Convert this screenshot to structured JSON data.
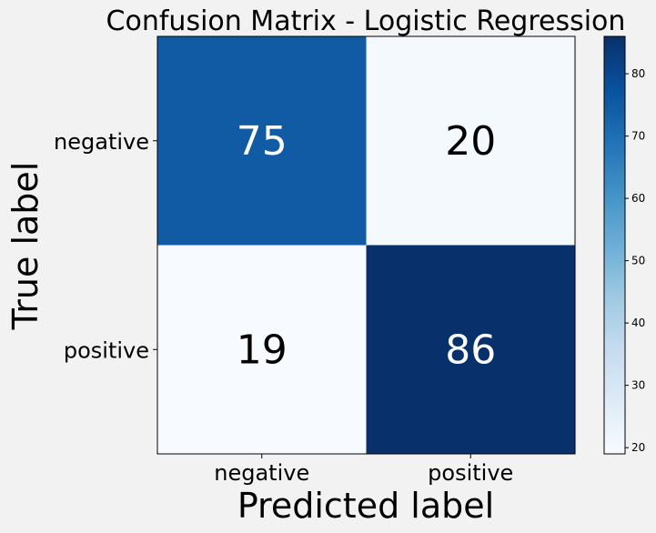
{
  "chart_data": {
    "type": "heatmap",
    "title": "Confusion Matrix - Logistic Regression",
    "xlabel": "Predicted label",
    "ylabel": "True label",
    "x_categories": [
      "negative",
      "positive"
    ],
    "y_categories": [
      "negative",
      "positive"
    ],
    "values": [
      [
        75,
        20
      ],
      [
        19,
        86
      ]
    ],
    "colormap": "Blues",
    "colorbar": {
      "min": 19,
      "max": 86,
      "ticks": [
        20,
        30,
        40,
        50,
        60,
        70,
        80
      ]
    },
    "text_colors": {
      "light": "#ffffff",
      "dark": "#000000"
    },
    "colors": {
      "background": "#f2f2f2",
      "low": "#f7fbff",
      "high": "#08306b"
    }
  }
}
